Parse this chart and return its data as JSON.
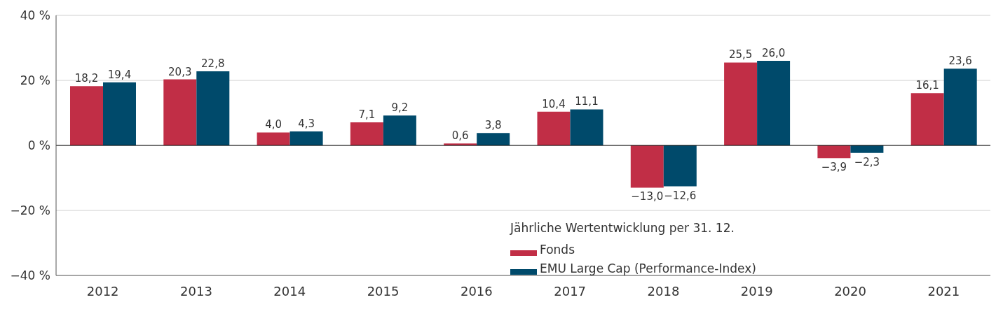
{
  "chart_data": {
    "type": "bar",
    "categories": [
      "2012",
      "2013",
      "2014",
      "2015",
      "2016",
      "2017",
      "2018",
      "2019",
      "2020",
      "2021"
    ],
    "series": [
      {
        "name": "Fonds",
        "color": "#c12e46",
        "values": [
          18.2,
          20.3,
          4.0,
          7.1,
          0.6,
          10.4,
          -13.0,
          25.5,
          -3.9,
          16.1
        ],
        "value_labels": [
          "18,2",
          "20,3",
          "4,0",
          "7,1",
          "0,6",
          "10,4",
          "−13,0",
          "25,5",
          "−3,9",
          "16,1"
        ]
      },
      {
        "name": "EMU Large Cap (Performance-Index)",
        "color": "#004a6b",
        "values": [
          19.4,
          22.8,
          4.3,
          9.2,
          3.8,
          11.1,
          -12.6,
          26.0,
          -2.3,
          23.6
        ],
        "value_labels": [
          "19,4",
          "22,8",
          "4,3",
          "9,2",
          "3,8",
          "11,1",
          "−12,6",
          "26,0",
          "−2,3",
          "23,6"
        ]
      }
    ],
    "ylim": [
      -40,
      40
    ],
    "yticks": [
      {
        "value": -40,
        "label": "−40 %"
      },
      {
        "value": -20,
        "label": "−20 %"
      },
      {
        "value": 0,
        "label": "0 %"
      },
      {
        "value": 20,
        "label": "20 %"
      },
      {
        "value": 40,
        "label": "40 %"
      }
    ],
    "grid": "y",
    "legend": "bottom",
    "legend_title": "Jährliche Wertentwicklung per 31. 12."
  }
}
